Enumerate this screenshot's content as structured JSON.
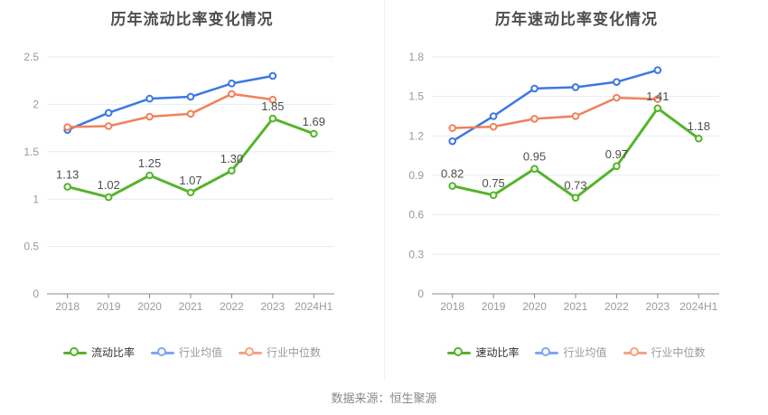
{
  "source_text": "数据来源：恒生聚源",
  "colors": {
    "main_green": "#55b42a",
    "industry_blue": "#3d77e6",
    "median_orange": "#f0815c",
    "grid_line": "#e6ecf6",
    "axis_line": "#888888",
    "axis_label": "#999999",
    "data_label": "#4d4d4d",
    "title": "#4d4d4d"
  },
  "chart_data": [
    {
      "type": "line",
      "title": "历年流动比率变化情况",
      "categories": [
        "2018",
        "2019",
        "2020",
        "2021",
        "2022",
        "2023",
        "2024H1"
      ],
      "ylim": [
        0,
        2.5
      ],
      "y_ticks": [
        0,
        0.5,
        1,
        1.5,
        2,
        2.5
      ],
      "y_tick_labels": [
        "0",
        "0.5",
        "1",
        "1.5",
        "2",
        "2.5"
      ],
      "grid": true,
      "legend_position": "bottom",
      "series": [
        {
          "name": "流动比率",
          "values": [
            1.13,
            1.02,
            1.25,
            1.07,
            1.3,
            1.85,
            1.69
          ],
          "color": "#55b42a",
          "legend_marker_color": "#55b42a",
          "legend_text_color": "#333333",
          "data_labels": true,
          "line_width": 3
        },
        {
          "name": "行业均值",
          "values": [
            1.73,
            1.91,
            2.06,
            2.08,
            2.22,
            2.3
          ],
          "color": "#3d77e6",
          "legend_marker_color": "#7ea6f0",
          "legend_text_color": "#999999",
          "data_labels": false,
          "line_width": 2.5
        },
        {
          "name": "行业中位数",
          "values": [
            1.76,
            1.77,
            1.87,
            1.9,
            2.11,
            2.05
          ],
          "color": "#f0815c",
          "legend_marker_color": "#f4a286",
          "legend_text_color": "#999999",
          "data_labels": false,
          "line_width": 2.5
        }
      ]
    },
    {
      "type": "line",
      "title": "历年速动比率变化情况",
      "categories": [
        "2018",
        "2019",
        "2020",
        "2021",
        "2022",
        "2023",
        "2024H1"
      ],
      "ylim": [
        0,
        1.8
      ],
      "y_ticks": [
        0,
        0.3,
        0.6,
        0.9,
        1.2,
        1.5,
        1.8
      ],
      "y_tick_labels": [
        "0",
        "0.3",
        "0.6",
        "0.9",
        "1.2",
        "1.5",
        "1.8"
      ],
      "grid": true,
      "legend_position": "bottom",
      "series": [
        {
          "name": "速动比率",
          "values": [
            0.82,
            0.75,
            0.95,
            0.73,
            0.97,
            1.41,
            1.18
          ],
          "color": "#55b42a",
          "legend_marker_color": "#55b42a",
          "legend_text_color": "#333333",
          "data_labels": true,
          "line_width": 3
        },
        {
          "name": "行业均值",
          "values": [
            1.16,
            1.35,
            1.56,
            1.57,
            1.61,
            1.7
          ],
          "color": "#3d77e6",
          "legend_marker_color": "#7ea6f0",
          "legend_text_color": "#999999",
          "data_labels": false,
          "line_width": 2.5
        },
        {
          "name": "行业中位数",
          "values": [
            1.26,
            1.27,
            1.33,
            1.35,
            1.49,
            1.48
          ],
          "color": "#f0815c",
          "legend_marker_color": "#f4a286",
          "legend_text_color": "#999999",
          "data_labels": false,
          "line_width": 2.5
        }
      ]
    }
  ]
}
